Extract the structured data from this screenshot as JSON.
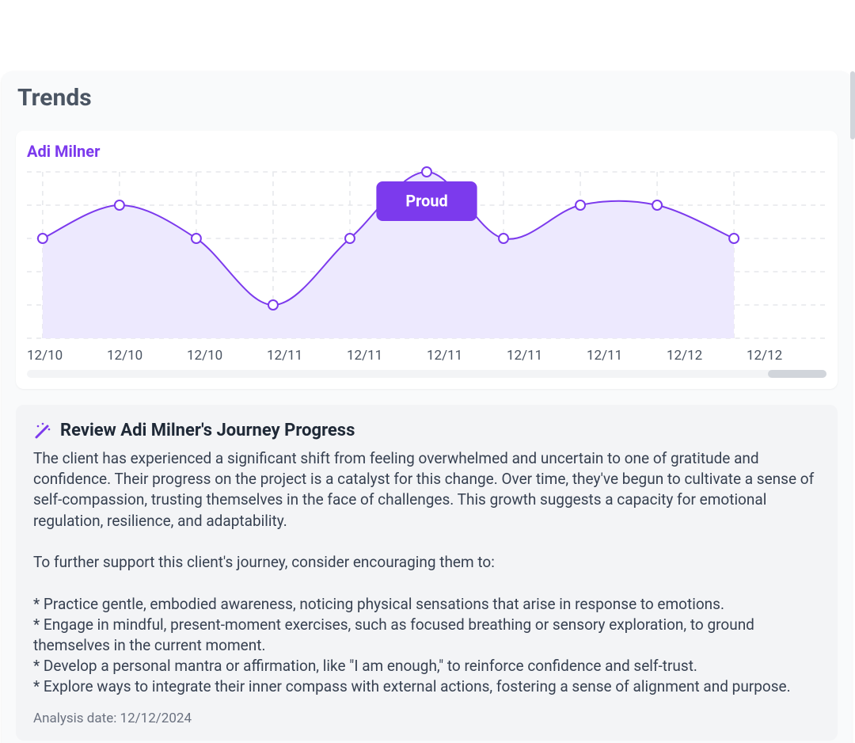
{
  "page_title": "Trends",
  "client_name": "Adi Milner",
  "chart": {
    "type": "area",
    "x_labels": [
      "12/10",
      "12/10",
      "12/10",
      "12/11",
      "12/11",
      "12/11",
      "12/11",
      "12/11",
      "12/12",
      "12/12"
    ],
    "values": [
      3,
      4,
      3,
      1,
      3,
      5,
      3,
      4,
      4,
      3
    ],
    "y_min": 0,
    "y_max": 5,
    "ytick_step": 1,
    "badge_index": 5,
    "badge_text": "Proud",
    "line_color": "#7c3aed",
    "fill_color": "#ede9fe",
    "marker_stroke": "#7c3aed",
    "marker_fill": "#ffffff",
    "marker_radius": 6,
    "line_width": 2,
    "grid_color": "#e5e7eb",
    "grid_dash": "6 6",
    "badge_bg": "#7c3aed",
    "badge_text_color": "#ffffff",
    "badge_fontsize": 20,
    "marker_stroke_width": 2
  },
  "review": {
    "title": "Review Adi Milner's Journey Progress",
    "body": "The client has experienced a significant shift from feeling overwhelmed and uncertain to one of gratitude and confidence. Their progress on the project is a catalyst for this change. Over time, they've begun to cultivate a sense of self-compassion, trusting themselves in the face of challenges. This growth suggests a capacity for emotional regulation, resilience, and adaptability.\n\nTo further support this client's journey, consider encouraging them to:\n\n* Practice gentle, embodied awareness, noticing physical sensations that arise in response to emotions.\n* Engage in mindful, present-moment exercises, such as focused breathing or sensory exploration, to ground themselves in the current moment.\n* Develop a personal mantra or affirmation, like \"I am enough,\" to reinforce confidence and self-trust.\n* Explore ways to integrate their inner compass with external actions, fostering a sense of alignment and purpose.",
    "analysis_date_label": "Analysis date: 12/12/2024"
  },
  "icons": {
    "wand_color": "#7c3aed"
  }
}
